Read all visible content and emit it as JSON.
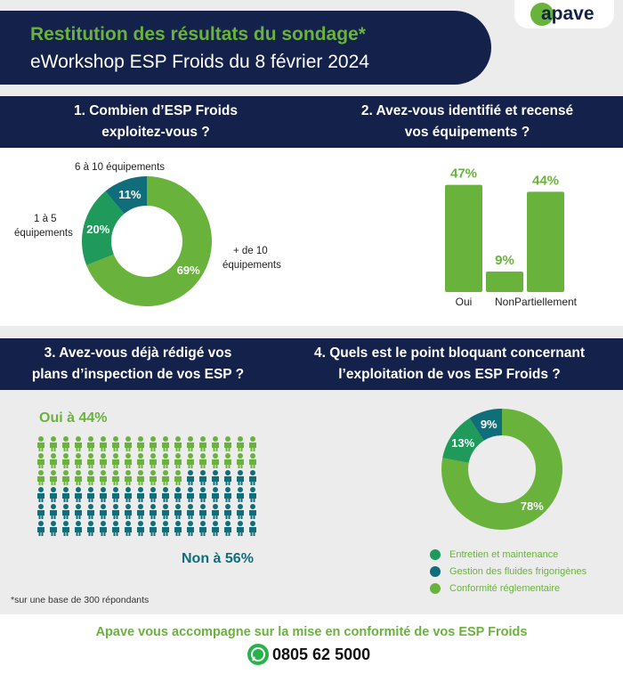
{
  "header": {
    "title": "Restitution des résultats du sondage*",
    "subtitle": "eWorkshop ESP Froids du 8 février 2024",
    "logo_text": "apave"
  },
  "q1": {
    "question_line1": "1. Combien d’ESP Froids",
    "question_line2": "exploitez-vous ?",
    "labels": {
      "cat_6_10": "6 à 10 équipements",
      "cat_1_5_line1": "1 à 5",
      "cat_1_5_line2": "équipements",
      "cat_10_plus_line1": "+ de  10",
      "cat_10_plus_line2": "équipements"
    },
    "chart_data": {
      "type": "pie",
      "categories": [
        "+ de 10 équipements",
        "1 à 5 équipements",
        "6 à 10 équipements"
      ],
      "values": [
        69,
        20,
        11
      ],
      "value_labels": [
        "69%",
        "20%",
        "11%"
      ],
      "colors": [
        "#69b33d",
        "#1f9a5a",
        "#0f6e7a"
      ]
    }
  },
  "q2": {
    "question_line1": "2. Avez-vous identifié et recensé",
    "question_line2": "vos équipements ?",
    "chart_data": {
      "type": "bar",
      "categories": [
        "Oui",
        "Non",
        "Partiellement"
      ],
      "values": [
        47,
        9,
        44
      ],
      "value_labels": [
        "47%",
        "9%",
        "44%"
      ],
      "ylim": [
        0,
        50
      ],
      "color": "#69b33d"
    }
  },
  "q3": {
    "question_line1": "3. Avez-vous déjà rédigé vos",
    "question_line2": "plans d’inspection de vos ESP ?",
    "yes_label": "Oui à 44%",
    "no_label": "Non à 56%",
    "footnote": "*sur une base de 300 répondants",
    "chart_data": {
      "type": "pictogram",
      "categories": [
        "Oui",
        "Non"
      ],
      "values": [
        44,
        56
      ],
      "colors": [
        "#69b33d",
        "#0f6e7a"
      ]
    }
  },
  "q4": {
    "question_line1": "4. Quels est le point bloquant concernant",
    "question_line2": "l’exploitation de vos ESP Froids ?",
    "chart_data": {
      "type": "pie",
      "categories": [
        "Conformité réglementaire",
        "Entretien et maintenance",
        "Gestion des fluides frigorigènes"
      ],
      "values": [
        78,
        13,
        9
      ],
      "value_labels": [
        "78%",
        "13%",
        "9%"
      ],
      "colors": [
        "#69b33d",
        "#1f9a5a",
        "#0f6e7a"
      ]
    },
    "legend": [
      {
        "label": "Entretien et maintenance",
        "color": "#1f9a5a"
      },
      {
        "label": "Gestion des fluides frigorigènes",
        "color": "#0f6e7a"
      },
      {
        "label": "Conformité réglementaire",
        "color": "#69b33d"
      }
    ]
  },
  "footer": {
    "text": "Apave vous accompagne sur la mise en conformité de vos ESP Froids",
    "phone": "0805 62 5000"
  }
}
